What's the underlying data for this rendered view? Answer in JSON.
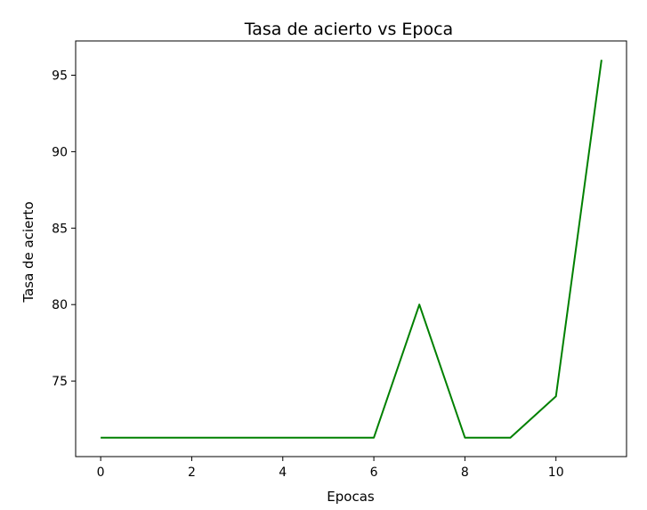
{
  "chart_data": {
    "type": "line",
    "title": "Tasa de acierto vs Epoca",
    "xlabel": "Epocas",
    "ylabel": "Tasa de acierto",
    "x": [
      0,
      1,
      2,
      3,
      4,
      5,
      6,
      7,
      8,
      9,
      10,
      11
    ],
    "series": [
      {
        "values": [
          71.3,
          71.3,
          71.3,
          71.3,
          71.3,
          71.3,
          71.3,
          80.0,
          71.3,
          71.3,
          74.0,
          96.0
        ],
        "color": "#008000"
      }
    ],
    "xlim": [
      -0.55,
      11.55
    ],
    "ylim": [
      70.06,
      97.24
    ],
    "xticks": [
      0,
      2,
      4,
      6,
      8,
      10
    ],
    "yticks": [
      75,
      80,
      85,
      90,
      95
    ],
    "xtick_labels": [
      "0",
      "2",
      "4",
      "6",
      "8",
      "10"
    ],
    "ytick_labels": [
      "75",
      "80",
      "85",
      "90",
      "95"
    ],
    "grid": false,
    "legend": "none"
  }
}
